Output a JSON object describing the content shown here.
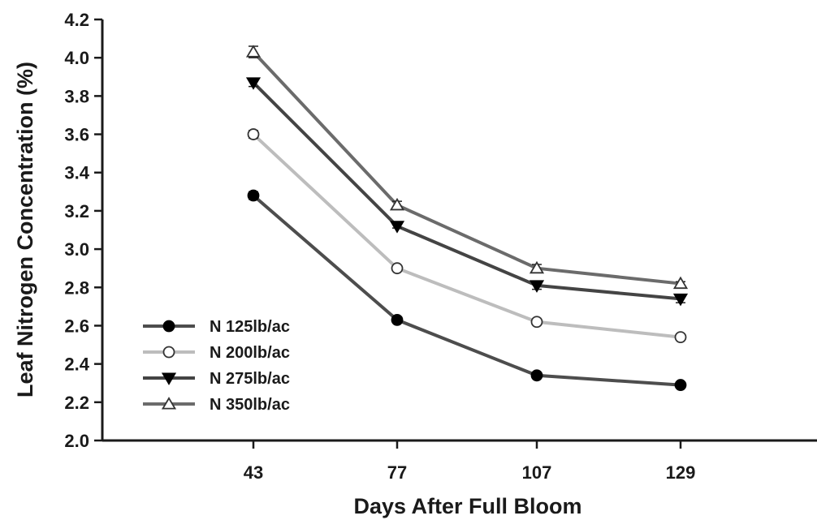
{
  "chart_data": {
    "type": "line",
    "xlabel": "Days After Full Bloom",
    "ylabel": "Leaf Nitrogen Concentration (%)",
    "categories": [
      "43",
      "77",
      "107",
      "129"
    ],
    "ylim": [
      2.0,
      4.2
    ],
    "yticks": [
      "2.0",
      "2.2",
      "2.4",
      "2.6",
      "2.8",
      "3.0",
      "3.2",
      "3.4",
      "3.6",
      "3.8",
      "4.0",
      "4.2"
    ],
    "grid": false,
    "legend_position": "bottom-left",
    "series": [
      {
        "name": "N 125lb/ac",
        "values": [
          3.28,
          2.63,
          2.34,
          2.29
        ],
        "errors": [
          0.02,
          0.01,
          0.01,
          0.01
        ],
        "marker": "filled-circle",
        "line_color": "#4d4d4d",
        "marker_fill": "#000000",
        "marker_stroke": "#000000"
      },
      {
        "name": "N 200lb/ac",
        "values": [
          3.6,
          2.9,
          2.62,
          2.54
        ],
        "errors": [
          0.02,
          0.01,
          0.01,
          0.01
        ],
        "marker": "open-circle",
        "line_color": "#bdbdbd",
        "marker_fill": "#ffffff",
        "marker_stroke": "#333333"
      },
      {
        "name": "N 275lb/ac",
        "values": [
          3.87,
          3.12,
          2.81,
          2.74
        ],
        "errors": [
          0.02,
          0.01,
          0.02,
          0.02
        ],
        "marker": "filled-triangle-down",
        "line_color": "#444444",
        "marker_fill": "#000000",
        "marker_stroke": "#000000"
      },
      {
        "name": "N 350lb/ac",
        "values": [
          4.03,
          3.23,
          2.9,
          2.82
        ],
        "errors": [
          0.03,
          0.02,
          0.02,
          0.01
        ],
        "marker": "open-triangle-up",
        "line_color": "#6b6b6b",
        "marker_fill": "#ffffff",
        "marker_stroke": "#333333"
      }
    ]
  }
}
